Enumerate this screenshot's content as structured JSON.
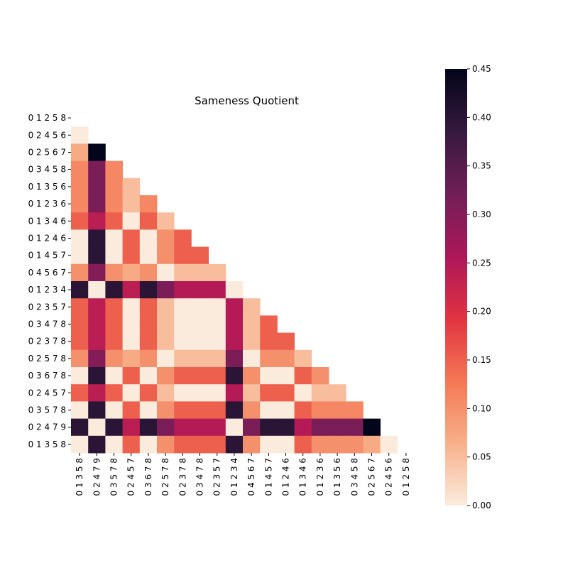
{
  "chart_data": {
    "type": "heatmap",
    "title": "Sameness Quotient",
    "xlabel": "",
    "ylabel": "",
    "row_labels": [
      "0 1 2 5 8",
      "0 2 4 5 6",
      "0 2 5 6 7",
      "0 3 4 5 8",
      "0 1 3 5 6",
      "0 1 2 3 6",
      "0 1 3 4 6",
      "0 1 2 4 6",
      "0 1 4 5 7",
      "0 4 5 6 7",
      "0 1 2 3 4",
      "0 2 3 5 7",
      "0 3 4 7 8",
      "0 2 3 7 8",
      "0 2 5 7 8",
      "0 3 6 7 8",
      "0 2 4 5 7",
      "0 3 5 7 8",
      "0 2 4 7 9",
      "0 1 3 5 8"
    ],
    "col_labels": [
      "0 1 3 5 8",
      "0 2 4 7 9",
      "0 3 5 7 8",
      "0 2 4 5 7",
      "0 3 6 7 8",
      "0 2 5 7 8",
      "0 2 3 7 8",
      "0 3 4 7 8",
      "0 2 3 5 7",
      "0 1 2 3 4",
      "0 4 5 6 7",
      "0 1 4 5 7",
      "0 1 2 4 6",
      "0 1 3 4 6",
      "0 1 2 3 6",
      "0 1 3 5 6",
      "0 3 4 5 8",
      "0 2 5 6 7",
      "0 2 4 5 6",
      "0 1 2 5 8"
    ],
    "values": [
      [],
      [
        0.0
      ],
      [
        0.07,
        0.45
      ],
      [
        0.11,
        0.31,
        0.11
      ],
      [
        0.11,
        0.31,
        0.11,
        0.05
      ],
      [
        0.11,
        0.31,
        0.11,
        0.05,
        0.11
      ],
      [
        0.15,
        0.24,
        0.15,
        0.0,
        0.15,
        0.05
      ],
      [
        0.0,
        0.4,
        0.0,
        0.15,
        0.0,
        0.1,
        0.15
      ],
      [
        0.0,
        0.4,
        0.0,
        0.15,
        0.0,
        0.1,
        0.15,
        0.15
      ],
      [
        0.1,
        0.3,
        0.1,
        0.07,
        0.1,
        0.0,
        0.05,
        0.05,
        0.05
      ],
      [
        0.4,
        0.0,
        0.4,
        0.24,
        0.4,
        0.31,
        0.25,
        0.25,
        0.25,
        0.0
      ],
      [
        0.15,
        0.24,
        0.15,
        0.0,
        0.15,
        0.05,
        0.0,
        0.0,
        0.0,
        0.25,
        0.05
      ],
      [
        0.15,
        0.24,
        0.15,
        0.0,
        0.15,
        0.05,
        0.0,
        0.0,
        0.0,
        0.25,
        0.05,
        0.15
      ],
      [
        0.15,
        0.24,
        0.15,
        0.0,
        0.15,
        0.05,
        0.0,
        0.0,
        0.0,
        0.25,
        0.05,
        0.15,
        0.15
      ],
      [
        0.1,
        0.3,
        0.1,
        0.07,
        0.1,
        0.0,
        0.05,
        0.05,
        0.05,
        0.31,
        0.0,
        0.1,
        0.1,
        0.05
      ],
      [
        0.0,
        0.4,
        0.0,
        0.15,
        0.0,
        0.1,
        0.15,
        0.15,
        0.15,
        0.4,
        0.1,
        0.0,
        0.0,
        0.15,
        0.1
      ],
      [
        0.15,
        0.24,
        0.15,
        0.0,
        0.15,
        0.05,
        0.0,
        0.0,
        0.0,
        0.25,
        0.05,
        0.15,
        0.15,
        0.0,
        0.05,
        0.05
      ],
      [
        0.0,
        0.4,
        0.0,
        0.15,
        0.0,
        0.1,
        0.15,
        0.15,
        0.15,
        0.4,
        0.1,
        0.0,
        0.0,
        0.15,
        0.11,
        0.11,
        0.11
      ],
      [
        0.4,
        0.0,
        0.4,
        0.24,
        0.4,
        0.31,
        0.25,
        0.25,
        0.25,
        0.0,
        0.31,
        0.4,
        0.4,
        0.25,
        0.31,
        0.31,
        0.31,
        0.45
      ],
      [
        0.0,
        0.4,
        0.0,
        0.15,
        0.0,
        0.1,
        0.15,
        0.15,
        0.15,
        0.4,
        0.1,
        0.0,
        0.0,
        0.15,
        0.1,
        0.1,
        0.1,
        0.07,
        0.0
      ]
    ],
    "mask": "upper-triangle",
    "colormap": "rocket_r",
    "colorbar": {
      "min": 0.0,
      "max": 0.45,
      "ticks": [
        0.0,
        0.05,
        0.1,
        0.15,
        0.2,
        0.25,
        0.3,
        0.35,
        0.4,
        0.45
      ]
    },
    "colormap_stops": [
      "#faebdd",
      "#f7b08a",
      "#f47754",
      "#e13342",
      "#ad1759",
      "#701f57",
      "#35193e",
      "#03051a"
    ],
    "grid": false
  }
}
